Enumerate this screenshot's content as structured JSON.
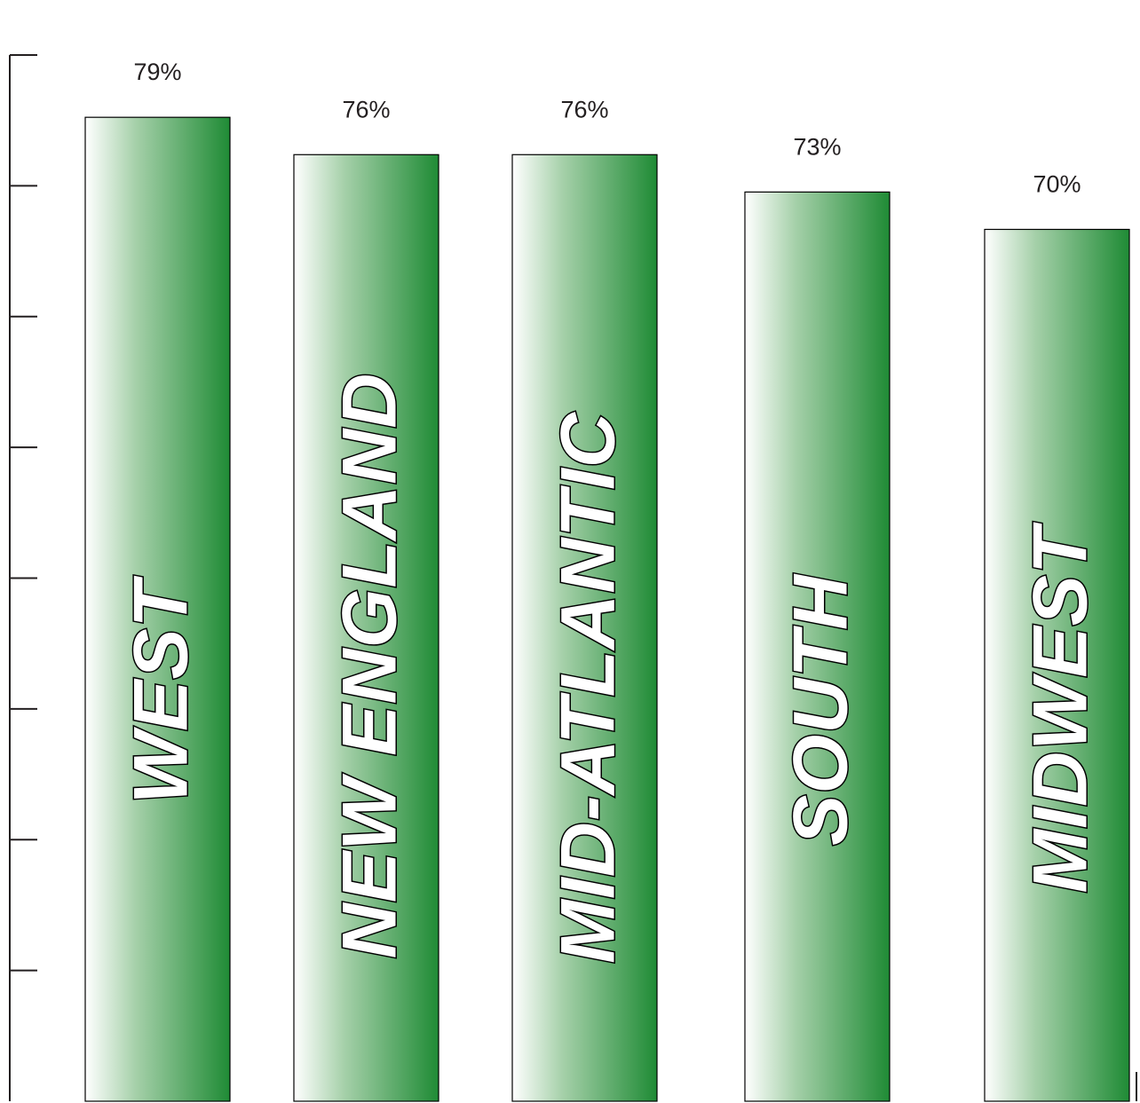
{
  "chart_data": {
    "type": "bar",
    "categories": [
      "WEST",
      "NEW ENGLAND",
      "MID-ATLANTIC",
      "SOUTH",
      "MIDWEST"
    ],
    "values": [
      79,
      76,
      76,
      73,
      70
    ],
    "value_labels": [
      "79%",
      "76%",
      "76%",
      "73%",
      "70%"
    ],
    "ylim": [
      0,
      84
    ],
    "y_ticks": 9,
    "colors": {
      "bar_gradient_start": "#ffffff",
      "bar_gradient_end": "#1f8b35",
      "bar_outline": "#000000",
      "axis": "#231f20"
    }
  }
}
